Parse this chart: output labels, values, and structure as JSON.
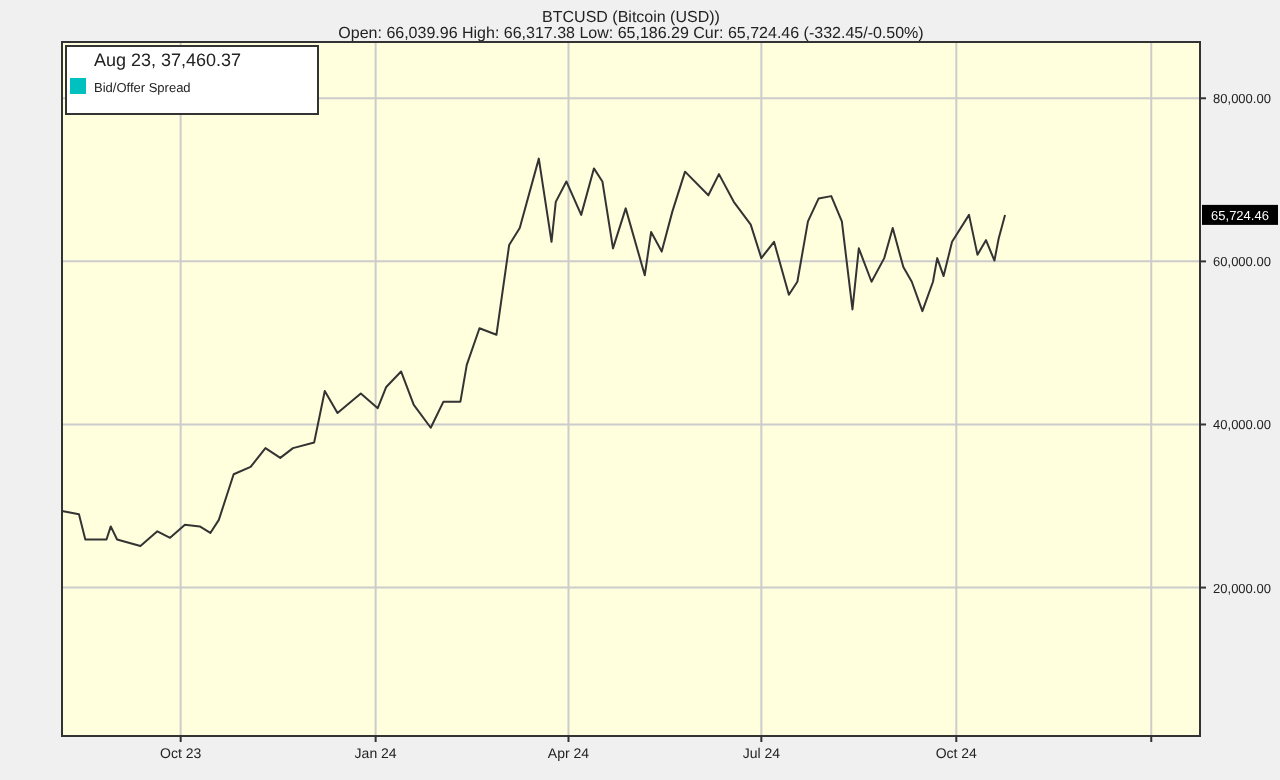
{
  "chart_data": {
    "type": "line",
    "title": "BTCUSD (Bitcoin (USD))",
    "subtitle": "Open: 66,039.96 High: 66,317.38 Low: 65,186.29 Cur: 65,724.46 (-332.45/-0.50%)",
    "x": [
      "2023-08-06",
      "2023-08-14",
      "2023-08-17",
      "2023-08-27",
      "2023-08-29",
      "2023-09-01",
      "2023-09-12",
      "2023-09-20",
      "2023-09-26",
      "2023-10-03",
      "2023-10-10",
      "2023-10-15",
      "2023-10-19",
      "2023-10-26",
      "2023-11-03",
      "2023-11-10",
      "2023-11-17",
      "2023-11-23",
      "2023-12-03",
      "2023-12-08",
      "2023-12-14",
      "2023-12-25",
      "2024-01-02",
      "2024-01-06",
      "2024-01-13",
      "2024-01-19",
      "2024-01-27",
      "2024-02-02",
      "2024-02-10",
      "2024-02-13",
      "2024-02-19",
      "2024-02-27",
      "2024-03-04",
      "2024-03-09",
      "2024-03-18",
      "2024-03-24",
      "2024-03-26",
      "2024-03-31",
      "2024-04-07",
      "2024-04-13",
      "2024-04-17",
      "2024-04-22",
      "2024-04-28",
      "2024-05-07",
      "2024-05-10",
      "2024-05-15",
      "2024-05-20",
      "2024-05-26",
      "2024-06-06",
      "2024-06-11",
      "2024-06-18",
      "2024-06-26",
      "2024-07-01",
      "2024-07-07",
      "2024-07-14",
      "2024-07-18",
      "2024-07-23",
      "2024-07-28",
      "2024-08-03",
      "2024-08-08",
      "2024-08-13",
      "2024-08-16",
      "2024-08-22",
      "2024-08-28",
      "2024-09-01",
      "2024-09-06",
      "2024-09-10",
      "2024-09-15",
      "2024-09-20",
      "2024-09-22",
      "2024-09-25",
      "2024-09-29",
      "2024-10-07",
      "2024-10-11",
      "2024-10-15",
      "2024-10-19",
      "2024-10-21",
      "2024-10-24"
    ],
    "series": [
      {
        "color": "#333333",
        "values": [
          29400,
          29000,
          25900,
          25900,
          27500,
          25900,
          25100,
          26900,
          26100,
          27700,
          27500,
          26700,
          28300,
          33900,
          34800,
          37100,
          35900,
          37100,
          37800,
          44100,
          41400,
          43800,
          42000,
          44600,
          46500,
          42400,
          39600,
          42800,
          42800,
          47300,
          51800,
          51000,
          62000,
          64100,
          72600,
          62400,
          67300,
          69800,
          65700,
          71400,
          69800,
          61600,
          66500,
          58300,
          63600,
          61200,
          66100,
          71000,
          68100,
          70700,
          67300,
          64500,
          60400,
          62400,
          55900,
          57500,
          64900,
          67700,
          68000,
          64900,
          54100,
          61600,
          57500,
          60400,
          64100,
          59300,
          57500,
          53900,
          57500,
          60400,
          58200,
          62400,
          65700,
          60800,
          62600,
          60100,
          62800,
          65700
        ]
      },
      {
        "name": "Bid/Offer Spread",
        "color": "#00c0c0",
        "values": [
          null,
          null,
          null,
          null,
          null,
          null,
          null,
          null,
          null,
          null,
          null,
          null,
          null,
          null,
          null,
          null,
          null,
          null,
          null,
          null,
          null,
          null,
          null,
          null,
          null,
          null,
          null,
          null,
          null,
          null,
          null,
          null,
          null,
          null,
          null,
          null,
          null,
          null,
          null,
          null,
          null,
          null,
          null,
          null,
          null,
          null,
          null,
          null,
          null,
          null,
          null,
          null,
          null,
          null,
          null,
          null,
          null,
          null,
          null,
          null,
          null,
          null,
          null,
          null,
          null,
          null,
          null,
          null,
          null,
          null,
          null,
          null,
          null,
          null,
          null,
          null,
          null,
          null
        ]
      }
    ],
    "xlim": [
      "2023-08-06",
      "2025-01-24"
    ],
    "xticks": [
      {
        "value": "2023-10-01",
        "label": "Oct 23"
      },
      {
        "value": "2024-01-01",
        "label": "Jan 24"
      },
      {
        "value": "2024-04-01",
        "label": "Apr 24"
      },
      {
        "value": "2024-07-01",
        "label": "Jul 24"
      },
      {
        "value": "2024-10-01",
        "label": "Oct 24"
      },
      {
        "value": "2025-01-01",
        "label": null
      }
    ],
    "ylim": [
      1800,
      86900
    ],
    "yticks": [
      {
        "value": 20000,
        "label": "20,000.00"
      },
      {
        "value": 40000,
        "label": "40,000.00"
      },
      {
        "value": 60000,
        "label": "60,000.00"
      },
      {
        "value": 80000,
        "label": "80,000.00"
      }
    ],
    "grid": true,
    "legend": "top left",
    "annotations": [
      "Aug 23, 37,460.37",
      "65,724.46"
    ]
  }
}
